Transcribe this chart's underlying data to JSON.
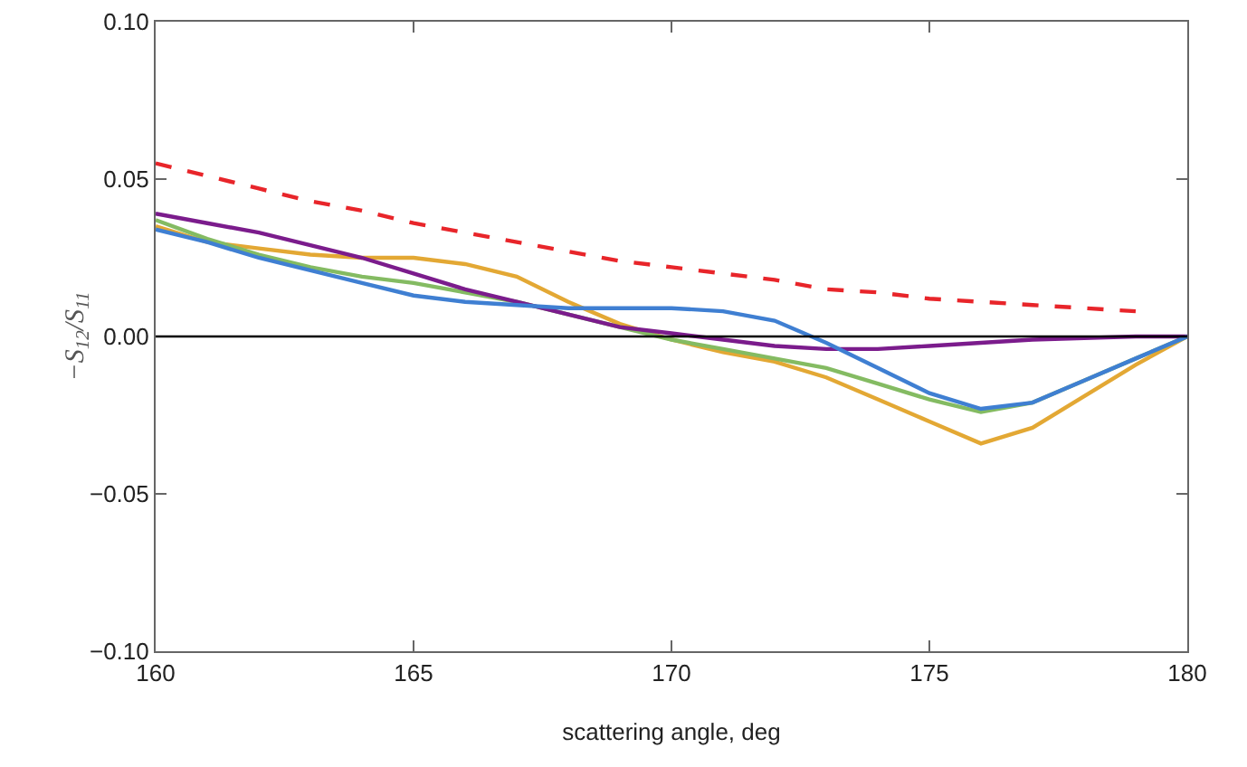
{
  "chart_data": {
    "type": "line",
    "xlabel": "scattering angle, deg",
    "ylabel": "−S$_{12}$/S$_{11}$",
    "x": [
      160,
      161,
      162,
      163,
      164,
      165,
      166,
      167,
      168,
      169,
      170,
      171,
      172,
      173,
      174,
      175,
      176,
      177,
      178,
      179,
      180
    ],
    "series": [
      {
        "color": "#e8252a",
        "line_style": "dashed",
        "x": [
          160,
          161,
          162,
          163,
          164,
          165,
          166,
          167,
          168,
          169,
          170,
          171,
          172,
          173,
          174,
          175,
          176,
          177,
          178,
          179
        ],
        "values": [
          0.055,
          0.051,
          0.047,
          0.043,
          0.04,
          0.036,
          0.033,
          0.03,
          0.027,
          0.024,
          0.022,
          0.02,
          0.018,
          0.015,
          0.014,
          0.012,
          0.011,
          0.01,
          0.009,
          0.008
        ]
      },
      {
        "color": "#e3a834",
        "values": [
          0.035,
          0.03,
          0.028,
          0.026,
          0.025,
          0.025,
          0.023,
          0.019,
          0.011,
          0.004,
          -0.001,
          -0.005,
          -0.008,
          -0.013,
          -0.02,
          -0.027,
          -0.034,
          -0.029,
          -0.019,
          -0.009,
          0
        ]
      },
      {
        "color": "#84bb62",
        "values": [
          0.037,
          0.031,
          0.026,
          0.022,
          0.019,
          0.017,
          0.014,
          0.011,
          0.007,
          0.003,
          -0.001,
          -0.004,
          -0.007,
          -0.01,
          -0.015,
          -0.02,
          -0.024,
          -0.021,
          -0.014,
          -0.007,
          0
        ]
      },
      {
        "color": "#7b1c8c",
        "values": [
          0.039,
          0.036,
          0.033,
          0.029,
          0.025,
          0.02,
          0.015,
          0.011,
          0.007,
          0.003,
          0.001,
          -0.001,
          -0.003,
          -0.004,
          -0.004,
          -0.003,
          -0.002,
          -0.001,
          -0.0005,
          0,
          0
        ]
      },
      {
        "color": "#3f7fd2",
        "values": [
          0.034,
          0.03,
          0.025,
          0.021,
          0.017,
          0.013,
          0.011,
          0.01,
          0.009,
          0.009,
          0.009,
          0.008,
          0.005,
          -0.002,
          -0.01,
          -0.018,
          -0.023,
          -0.021,
          -0.014,
          -0.007,
          0
        ]
      }
    ],
    "xlim": [
      160,
      180
    ],
    "xticks": [
      160,
      165,
      170,
      175,
      180
    ],
    "ylim": [
      -0.1,
      0.1
    ],
    "yticks": [
      {
        "value": -0.1,
        "label": "−0.10"
      },
      {
        "value": -0.05,
        "label": "−0.05"
      },
      {
        "value": 0,
        "label": "0.00"
      },
      {
        "value": 0.05,
        "label": "0.05"
      },
      {
        "value": 0.1,
        "label": "0.10"
      }
    ],
    "ref_lines": [
      {
        "axis": "y",
        "value": 0,
        "color": "#000000"
      }
    ]
  }
}
